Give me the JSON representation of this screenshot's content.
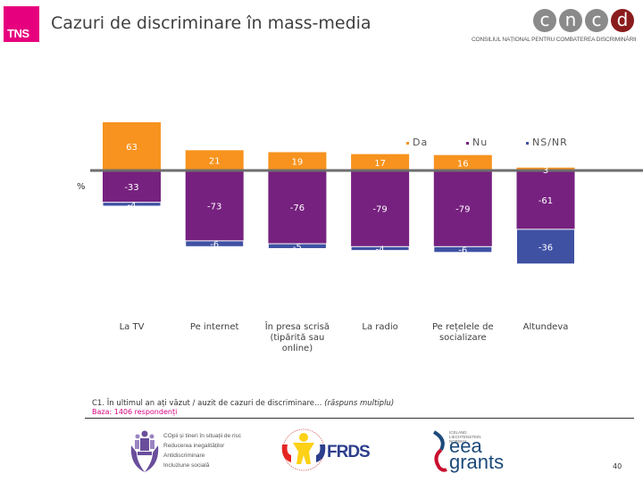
{
  "header": {
    "logo_text": "TNS",
    "title": "Cazuri de discriminare în mass-media",
    "partner_logo": {
      "letters": [
        "c",
        "n",
        "c",
        "d"
      ],
      "caption": "CONSILIUL NAȚIONAL PENTRU COMBATEREA DISCRIMINĂRII"
    }
  },
  "colors": {
    "da": "#f7931e",
    "nu": "#76217f",
    "nsnr": "#3f51a3",
    "axis": "#6d6d6d",
    "brand": "#e6007e"
  },
  "chart_data": {
    "type": "bar",
    "stacked": true,
    "diverging": true,
    "title": "Cazuri de discriminare în mass-media",
    "ylabel": "%",
    "xlabel": "",
    "categories": [
      "La TV",
      "Pe internet",
      "În presa scrisă (tipărită sau online)",
      "La radio",
      "Pe rețelele de socializare",
      "Altundeva"
    ],
    "category_lines": [
      [
        "La TV"
      ],
      [
        "Pe internet"
      ],
      [
        "În presa scrisă",
        "(tipărită sau",
        "online)"
      ],
      [
        "La radio"
      ],
      [
        "Pe rețelele de",
        "socializare"
      ],
      [
        "Altundeva"
      ]
    ],
    "series": [
      {
        "name": "Da",
        "values": [
          63,
          21,
          19,
          17,
          16,
          3
        ]
      },
      {
        "name": "Nu",
        "values": [
          -33,
          -73,
          -76,
          -79,
          -79,
          -61
        ]
      },
      {
        "name": "NS/NR",
        "values": [
          -4,
          -6,
          -5,
          -4,
          -6,
          -36
        ]
      }
    ],
    "legend": [
      "Da",
      "Nu",
      "NS/NR"
    ],
    "legend_position": "top-right",
    "grid": false
  },
  "footer": {
    "question": "C1. În ultimul an ați văzut / auzit de cazuri de discriminare…",
    "question_note": "(răspuns multiplu)",
    "base": "Baza: 1406 respondenți",
    "cop_logo_lines": [
      "COpii și tineri în situații de risc",
      "Reducerea inegalităților",
      "Antidiscriminare",
      "Incluziune socială"
    ],
    "frds_text": "FRDS",
    "eea_small": [
      "ICELAND",
      "LIECHTENSTEIN",
      "NORWAY"
    ],
    "eea_big": [
      "eea",
      "grants"
    ],
    "page_number": "40"
  }
}
